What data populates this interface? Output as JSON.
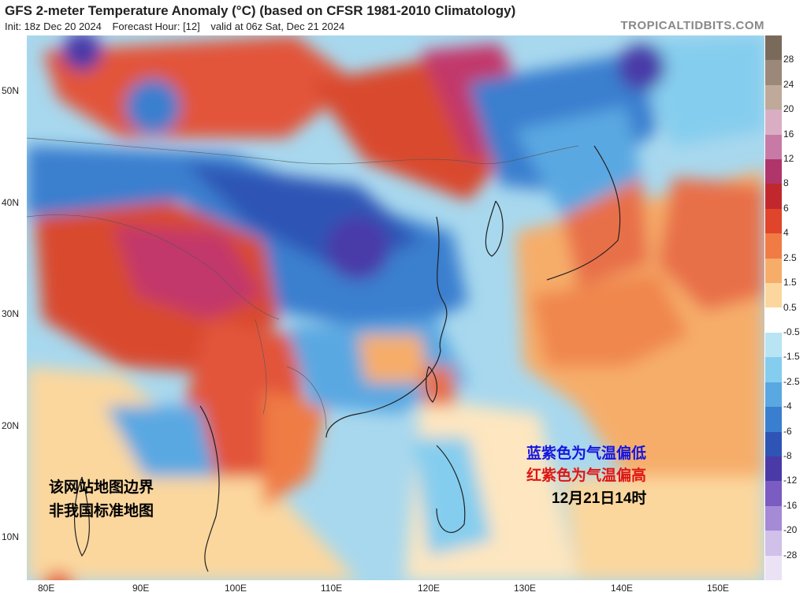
{
  "header": {
    "title": "GFS 2-meter Temperature Anomaly (°C) (based on CFSR 1981-2010 Climatology)",
    "init": "Init: 18z Dec 20 2024",
    "forecast": "Forecast Hour: [12]",
    "valid": "valid at 06z Sat, Dec 21 2024",
    "brand": "TROPICALTIDBITS.COM"
  },
  "axes": {
    "lat_labels": [
      "50N",
      "40N",
      "30N",
      "20N",
      "10N"
    ],
    "lon_labels": [
      "80E",
      "90E",
      "100E",
      "110E",
      "120E",
      "130E",
      "140E",
      "150E"
    ]
  },
  "colorbar": {
    "ticks": [
      "28",
      "24",
      "20",
      "16",
      "12",
      "8",
      "6",
      "4",
      "2.5",
      "1.5",
      "0.5",
      "-0.5",
      "-1.5",
      "-2.5",
      "-4",
      "-6",
      "-8",
      "-12",
      "-16",
      "-20",
      "-28"
    ],
    "colors": [
      "#7a6a5a",
      "#9c8878",
      "#bfa999",
      "#d9aec4",
      "#c87aa6",
      "#b0356b",
      "#c1282d",
      "#e0442a",
      "#f07b45",
      "#f6ad6a",
      "#fbd79e",
      "#ffffff",
      "#b9e4f4",
      "#85cdee",
      "#5aa8e2",
      "#3a7fcf",
      "#2e55b5",
      "#4a3aa8",
      "#7a5cc2",
      "#a58ad6",
      "#d0c0ea",
      "#ece2f6"
    ]
  },
  "annotations": {
    "line1": "蓝紫色为气温偏低",
    "line2": "红紫色为气温偏高",
    "date": "12月21日14时",
    "disclaimer1": "该网站地图边界",
    "disclaimer2": "非我国标准地图"
  },
  "colors": {
    "cold_text": "#1515e0",
    "warm_text": "#e01515"
  }
}
